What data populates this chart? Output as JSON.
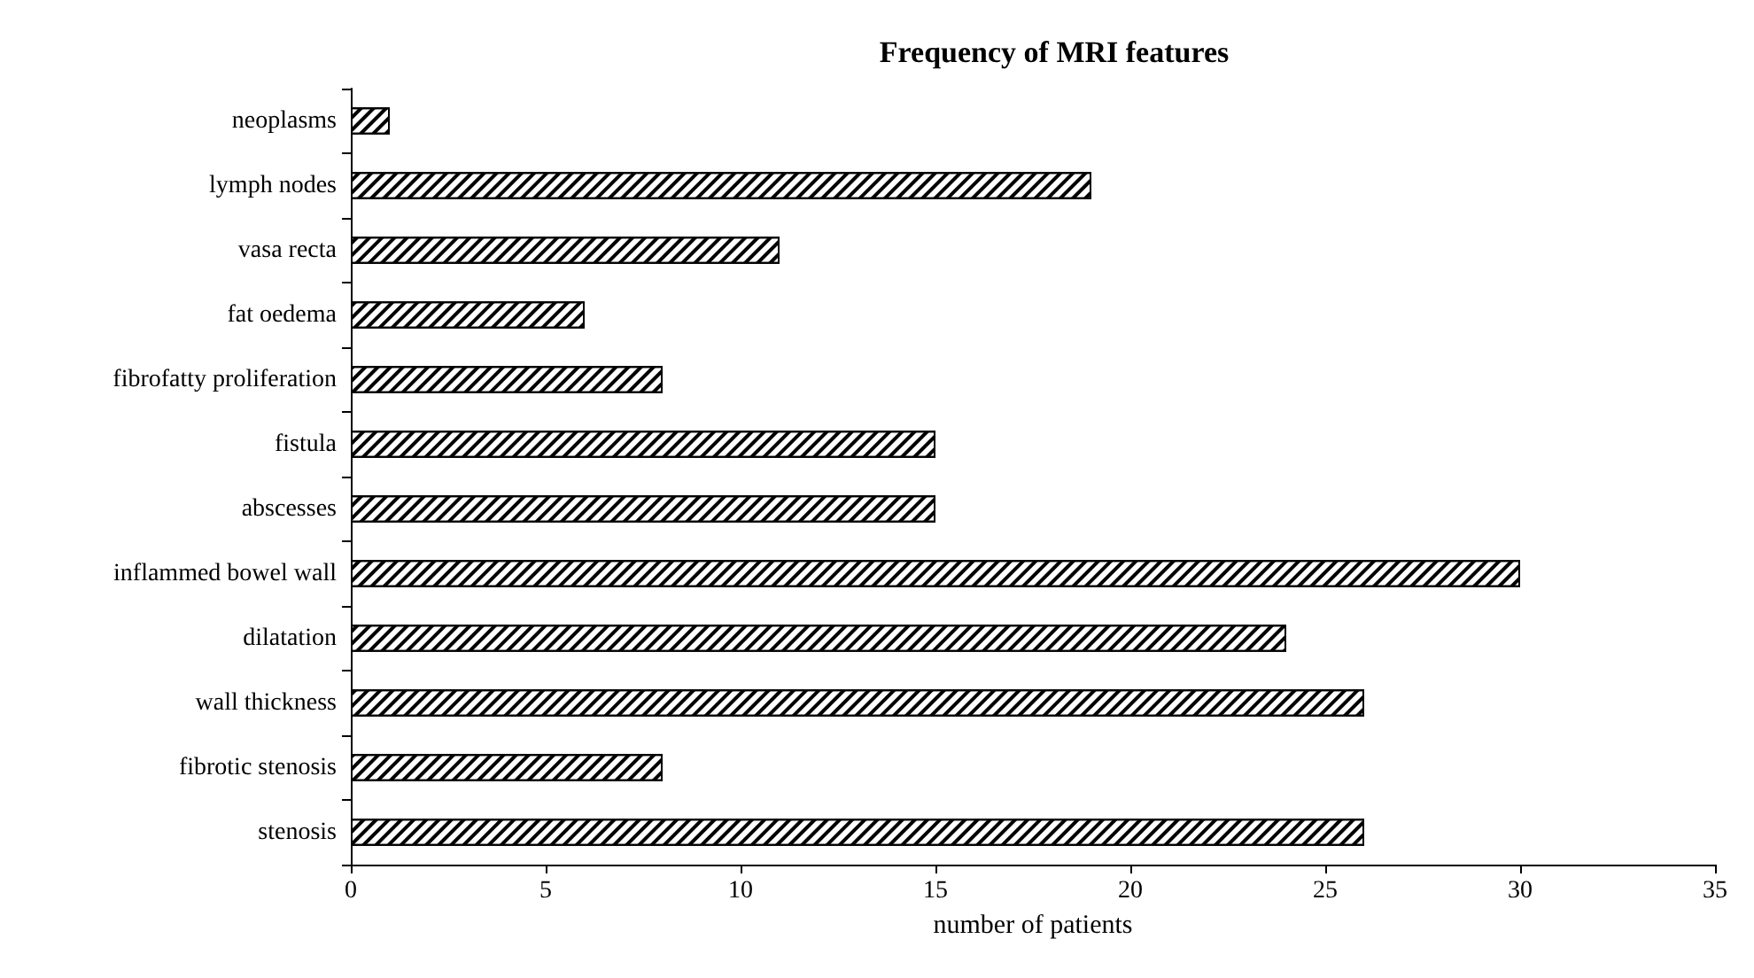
{
  "chart_data": {
    "type": "bar",
    "orientation": "horizontal",
    "title": "Frequency of MRI features",
    "xlabel": "number of patients",
    "categories": [
      "neoplasms",
      "lymph nodes",
      "vasa recta",
      "fat oedema",
      "fibrofatty proliferation",
      "fistula",
      "abscesses",
      "inflammed bowel wall",
      "dilatation",
      "wall thickness",
      "fibrotic stenosis",
      "stenosis"
    ],
    "values": [
      1,
      19,
      11,
      6,
      8,
      15,
      15,
      30,
      24,
      26,
      8,
      26
    ],
    "color": "#000000",
    "xlim": [
      0,
      35
    ],
    "xticks": [
      0,
      5,
      10,
      15,
      20,
      25,
      30,
      35
    ]
  }
}
